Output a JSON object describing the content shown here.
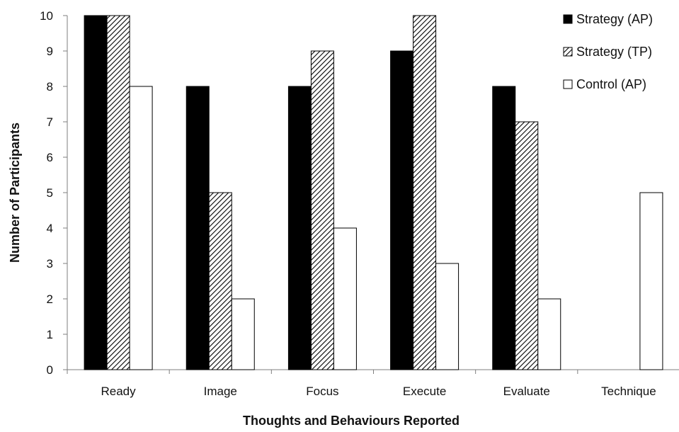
{
  "chart_data": {
    "type": "bar",
    "title": "",
    "xlabel": "Thoughts and Behaviours Reported",
    "ylabel": "Number of Participants",
    "ylim": [
      0,
      10
    ],
    "yticks": [
      "0",
      "1",
      "2",
      "3",
      "4",
      "5",
      "6",
      "7",
      "8",
      "9",
      "10"
    ],
    "categories": [
      "Ready",
      "Image",
      "Focus",
      "Execute",
      "Evaluate",
      "Technique"
    ],
    "series": [
      {
        "name": "Strategy (AP)",
        "values": [
          10,
          8,
          8,
          9,
          8,
          0
        ],
        "fill": "solid",
        "color": "#000000"
      },
      {
        "name": "Strategy (TP)",
        "values": [
          10,
          5,
          9,
          10,
          7,
          0
        ],
        "fill": "hatched",
        "color": "#000000"
      },
      {
        "name": "Control (AP)",
        "values": [
          8,
          2,
          4,
          3,
          2,
          5
        ],
        "fill": "empty",
        "color": "#ffffff"
      }
    ],
    "grid": false,
    "legend_position": "top-right"
  }
}
